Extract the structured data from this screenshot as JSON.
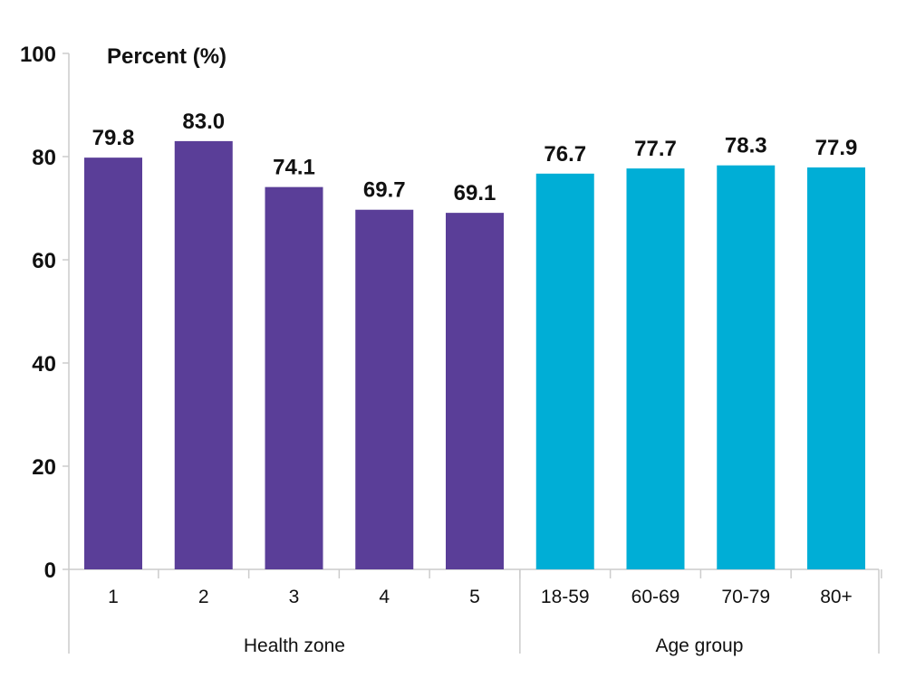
{
  "chart_data": {
    "type": "bar",
    "ylabel": "Percent (%)",
    "ylim": [
      0,
      100
    ],
    "yticks": [
      0,
      20,
      40,
      60,
      80,
      100
    ],
    "grid": false,
    "groups": [
      {
        "label": "Health zone",
        "color": "#5a3e98",
        "categories": [
          "1",
          "2",
          "3",
          "4",
          "5"
        ],
        "values": [
          79.8,
          83.0,
          74.1,
          69.7,
          69.1
        ],
        "value_labels": [
          "79.8",
          "83.0",
          "74.1",
          "69.7",
          "69.1"
        ]
      },
      {
        "label": "Age group",
        "color": "#00aed6",
        "categories": [
          "18-59",
          "60-69",
          "70-79",
          "80+"
        ],
        "values": [
          76.7,
          77.7,
          78.3,
          77.9
        ],
        "value_labels": [
          "76.7",
          "77.7",
          "78.3",
          "77.9"
        ]
      }
    ]
  }
}
